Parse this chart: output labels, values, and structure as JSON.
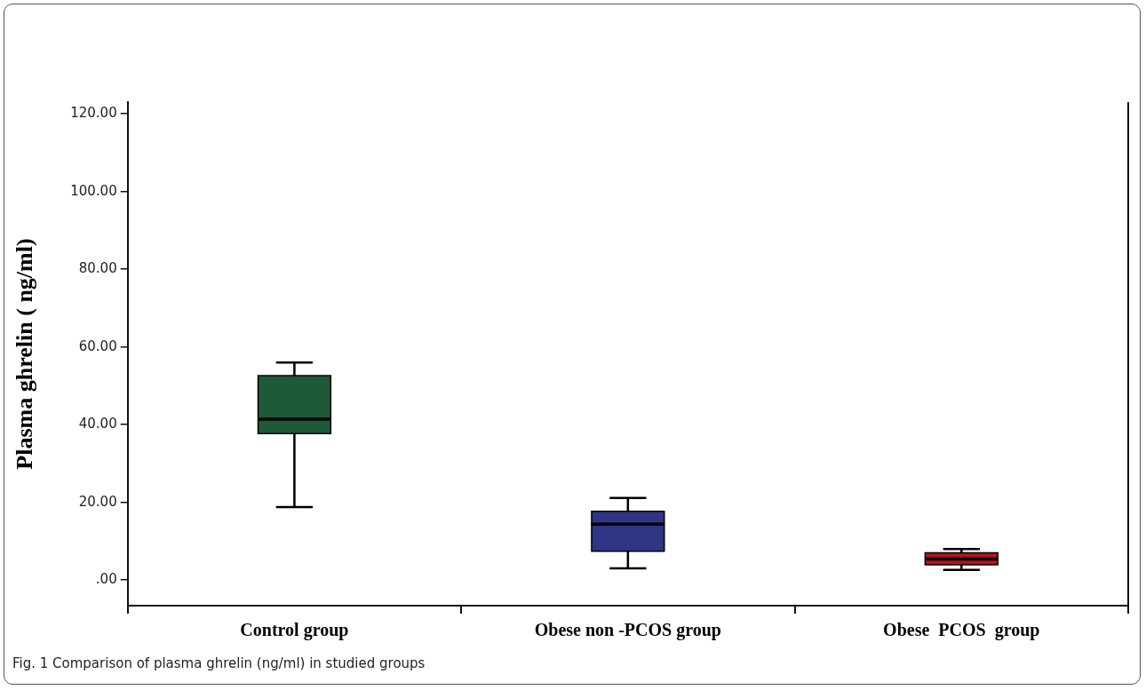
{
  "chart_data": {
    "type": "box",
    "ylabel": "Plasma ghrelin ( ng/ml)",
    "categories": [
      "Control group",
      "Obese non -PCOS group",
      "Obese  PCOS  group"
    ],
    "colors": [
      "#1d5a38",
      "#2f3584",
      "#b3141e"
    ],
    "boxes": [
      {
        "low": 18.8,
        "q1": 37.7,
        "median": 41.4,
        "q3": 52.6,
        "high": 56.0
      },
      {
        "low": 3.0,
        "q1": 7.4,
        "median": 14.4,
        "q3": 17.7,
        "high": 21.1
      },
      {
        "low": 2.6,
        "q1": 3.9,
        "median": 5.4,
        "q3": 7.0,
        "high": 8.0
      }
    ],
    "ylim": [
      -6.6,
      123
    ],
    "yticks": [
      {
        "value": 0,
        "label": ".00"
      },
      {
        "value": 20,
        "label": "20.00"
      },
      {
        "value": 40,
        "label": "40.00"
      },
      {
        "value": 60,
        "label": "60.00"
      },
      {
        "value": 80,
        "label": "80.00"
      },
      {
        "value": 100,
        "label": "100.00"
      },
      {
        "value": 120,
        "label": "120.00"
      }
    ],
    "grid": false,
    "legend": false,
    "annotations": [
      "Fig. 1 Comparison of plasma ghrelin (ng/ml) in studied groups"
    ]
  }
}
